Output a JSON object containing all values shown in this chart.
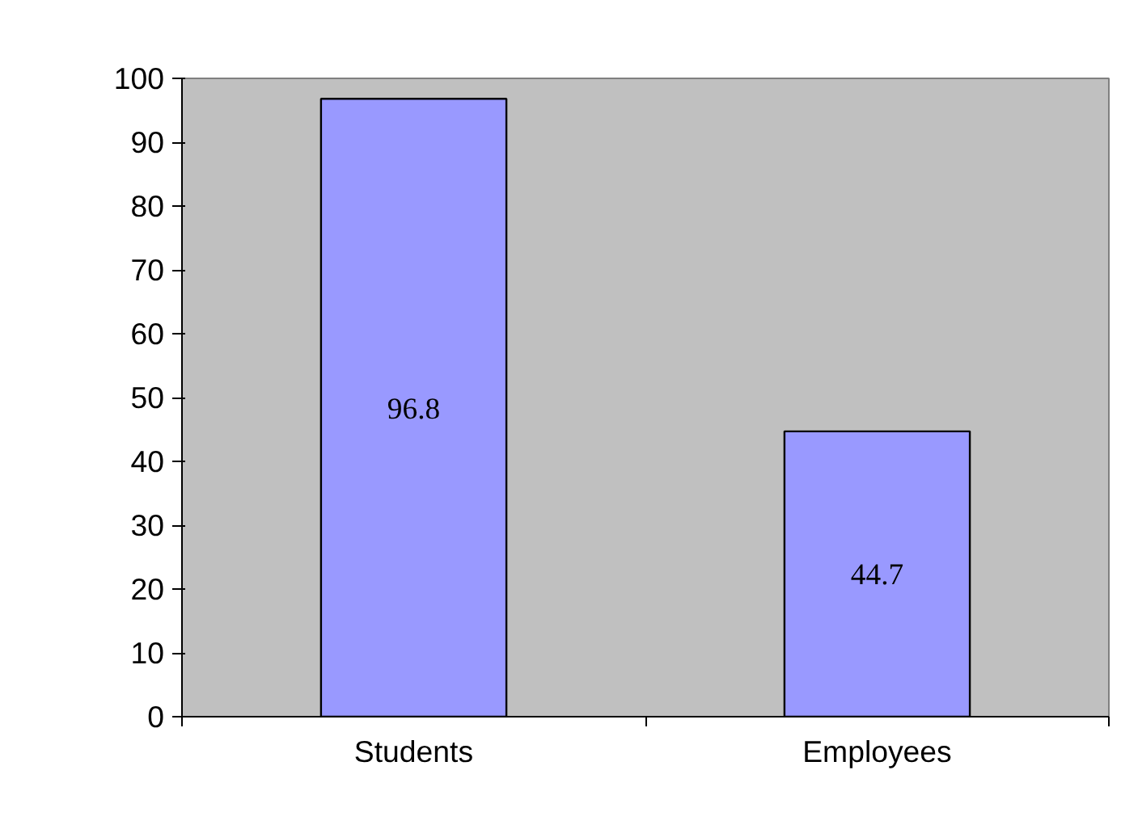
{
  "chart_data": {
    "type": "bar",
    "categories": [
      "Students",
      "Employees"
    ],
    "values": [
      96.8,
      44.7
    ],
    "color": "#9999ff",
    "ylim": [
      0,
      100
    ],
    "yticks": [
      0,
      10,
      20,
      30,
      40,
      50,
      60,
      70,
      80,
      90,
      100
    ],
    "grid": false,
    "data_labels": true
  }
}
